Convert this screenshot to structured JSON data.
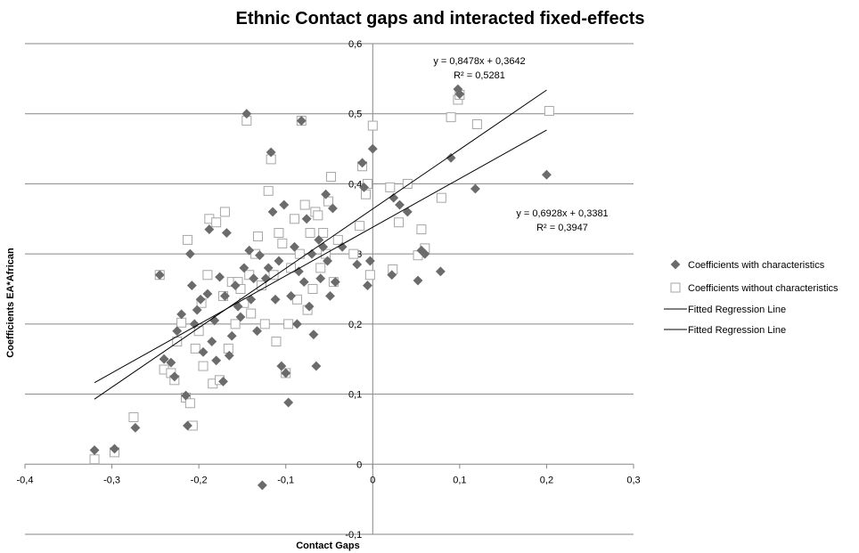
{
  "chart_data": {
    "type": "scatter",
    "title": "Ethnic Contact gaps and interacted fixed-effects",
    "xlabel": "Contact Gaps",
    "ylabel": "Coefficients EA*African",
    "xlim": [
      -0.4,
      0.3
    ],
    "ylim": [
      -0.1,
      0.6
    ],
    "x_ticks": [
      "-0,4",
      "-0,3",
      "-0,2",
      "-0,1",
      "0",
      "0,1",
      "0,2",
      "0,3"
    ],
    "y_ticks": [
      "-0,1",
      "0",
      "0,1",
      "0,2",
      "0,3",
      "0,4",
      "0,5",
      "0,6"
    ],
    "grid": "horizontal",
    "legend_position": "right",
    "colors": {
      "with": "#6b6b6b",
      "without": "#a6a6a6",
      "line": "#000000",
      "grid": "#868686"
    },
    "series": [
      {
        "name": "Coefficients with characteristics",
        "marker": "diamond",
        "points": [
          [
            -0.32,
            0.02
          ],
          [
            -0.297,
            0.022
          ],
          [
            -0.273,
            0.052
          ],
          [
            -0.245,
            0.27
          ],
          [
            -0.24,
            0.15
          ],
          [
            -0.232,
            0.145
          ],
          [
            -0.228,
            0.125
          ],
          [
            -0.225,
            0.19
          ],
          [
            -0.22,
            0.214
          ],
          [
            -0.215,
            0.098
          ],
          [
            -0.213,
            0.055
          ],
          [
            -0.21,
            0.3
          ],
          [
            -0.208,
            0.255
          ],
          [
            -0.205,
            0.2
          ],
          [
            -0.202,
            0.22
          ],
          [
            -0.198,
            0.235
          ],
          [
            -0.195,
            0.16
          ],
          [
            -0.19,
            0.243
          ],
          [
            -0.188,
            0.335
          ],
          [
            -0.185,
            0.175
          ],
          [
            -0.182,
            0.205
          ],
          [
            -0.18,
            0.148
          ],
          [
            -0.176,
            0.267
          ],
          [
            -0.172,
            0.118
          ],
          [
            -0.17,
            0.24
          ],
          [
            -0.168,
            0.33
          ],
          [
            -0.165,
            0.155
          ],
          [
            -0.162,
            0.183
          ],
          [
            -0.158,
            0.255
          ],
          [
            -0.155,
            0.225
          ],
          [
            -0.152,
            0.21
          ],
          [
            -0.148,
            0.28
          ],
          [
            -0.145,
            0.5
          ],
          [
            -0.142,
            0.305
          ],
          [
            -0.14,
            0.235
          ],
          [
            -0.137,
            0.265
          ],
          [
            -0.133,
            0.19
          ],
          [
            -0.13,
            0.298
          ],
          [
            -0.127,
            -0.03
          ],
          [
            -0.123,
            0.265
          ],
          [
            -0.12,
            0.28
          ],
          [
            -0.117,
            0.445
          ],
          [
            -0.115,
            0.36
          ],
          [
            -0.112,
            0.235
          ],
          [
            -0.108,
            0.29
          ],
          [
            -0.105,
            0.14
          ],
          [
            -0.102,
            0.37
          ],
          [
            -0.1,
            0.13
          ],
          [
            -0.097,
            0.088
          ],
          [
            -0.094,
            0.24
          ],
          [
            -0.09,
            0.31
          ],
          [
            -0.087,
            0.2
          ],
          [
            -0.085,
            0.275
          ],
          [
            -0.082,
            0.49
          ],
          [
            -0.079,
            0.26
          ],
          [
            -0.076,
            0.35
          ],
          [
            -0.073,
            0.225
          ],
          [
            -0.07,
            0.3
          ],
          [
            -0.068,
            0.185
          ],
          [
            -0.065,
            0.14
          ],
          [
            -0.062,
            0.32
          ],
          [
            -0.06,
            0.265
          ],
          [
            -0.057,
            0.31
          ],
          [
            -0.054,
            0.385
          ],
          [
            -0.052,
            0.29
          ],
          [
            -0.049,
            0.24
          ],
          [
            -0.046,
            0.365
          ],
          [
            -0.043,
            0.26
          ],
          [
            -0.035,
            0.31
          ],
          [
            -0.018,
            0.285
          ],
          [
            -0.012,
            0.43
          ],
          [
            -0.01,
            0.395
          ],
          [
            -0.006,
            0.255
          ],
          [
            -0.003,
            0.29
          ],
          [
            0.0,
            0.45
          ],
          [
            0.022,
            0.27
          ],
          [
            0.024,
            0.38
          ],
          [
            0.031,
            0.37
          ],
          [
            0.04,
            0.36
          ],
          [
            0.052,
            0.262
          ],
          [
            0.056,
            0.305
          ],
          [
            0.06,
            0.3
          ],
          [
            0.078,
            0.275
          ],
          [
            0.09,
            0.437
          ],
          [
            0.098,
            0.535
          ],
          [
            0.1,
            0.528
          ],
          [
            0.118,
            0.393
          ],
          [
            0.2,
            0.413
          ]
        ]
      },
      {
        "name": "Coefficients without characteristics",
        "marker": "square",
        "points": [
          [
            -0.32,
            0.007
          ],
          [
            -0.297,
            0.017
          ],
          [
            -0.275,
            0.067
          ],
          [
            -0.245,
            0.27
          ],
          [
            -0.24,
            0.135
          ],
          [
            -0.232,
            0.13
          ],
          [
            -0.228,
            0.12
          ],
          [
            -0.225,
            0.175
          ],
          [
            -0.22,
            0.202
          ],
          [
            -0.215,
            0.095
          ],
          [
            -0.213,
            0.32
          ],
          [
            -0.21,
            0.087
          ],
          [
            -0.207,
            0.055
          ],
          [
            -0.204,
            0.165
          ],
          [
            -0.2,
            0.19
          ],
          [
            -0.197,
            0.23
          ],
          [
            -0.195,
            0.14
          ],
          [
            -0.19,
            0.27
          ],
          [
            -0.188,
            0.35
          ],
          [
            -0.184,
            0.115
          ],
          [
            -0.18,
            0.345
          ],
          [
            -0.176,
            0.12
          ],
          [
            -0.172,
            0.24
          ],
          [
            -0.17,
            0.36
          ],
          [
            -0.166,
            0.165
          ],
          [
            -0.162,
            0.26
          ],
          [
            -0.158,
            0.2
          ],
          [
            -0.155,
            0.26
          ],
          [
            -0.152,
            0.25
          ],
          [
            -0.148,
            0.23
          ],
          [
            -0.145,
            0.49
          ],
          [
            -0.142,
            0.27
          ],
          [
            -0.14,
            0.215
          ],
          [
            -0.135,
            0.3
          ],
          [
            -0.132,
            0.325
          ],
          [
            -0.128,
            0.255
          ],
          [
            -0.124,
            0.2
          ],
          [
            -0.12,
            0.39
          ],
          [
            -0.117,
            0.435
          ],
          [
            -0.114,
            0.27
          ],
          [
            -0.111,
            0.175
          ],
          [
            -0.108,
            0.33
          ],
          [
            -0.104,
            0.315
          ],
          [
            -0.1,
            0.13
          ],
          [
            -0.097,
            0.2
          ],
          [
            -0.094,
            0.28
          ],
          [
            -0.09,
            0.35
          ],
          [
            -0.087,
            0.235
          ],
          [
            -0.084,
            0.3
          ],
          [
            -0.082,
            0.49
          ],
          [
            -0.078,
            0.37
          ],
          [
            -0.075,
            0.22
          ],
          [
            -0.072,
            0.33
          ],
          [
            -0.069,
            0.25
          ],
          [
            -0.066,
            0.36
          ],
          [
            -0.063,
            0.355
          ],
          [
            -0.06,
            0.28
          ],
          [
            -0.057,
            0.33
          ],
          [
            -0.054,
            0.3
          ],
          [
            -0.051,
            0.375
          ],
          [
            -0.048,
            0.41
          ],
          [
            -0.045,
            0.26
          ],
          [
            -0.04,
            0.32
          ],
          [
            -0.022,
            0.3
          ],
          [
            -0.015,
            0.34
          ],
          [
            -0.012,
            0.425
          ],
          [
            -0.008,
            0.385
          ],
          [
            -0.006,
            0.4
          ],
          [
            -0.003,
            0.27
          ],
          [
            0.0,
            0.483
          ],
          [
            0.02,
            0.395
          ],
          [
            0.023,
            0.278
          ],
          [
            0.03,
            0.345
          ],
          [
            0.04,
            0.4
          ],
          [
            0.052,
            0.298
          ],
          [
            0.056,
            0.335
          ],
          [
            0.06,
            0.308
          ],
          [
            0.079,
            0.38
          ],
          [
            0.09,
            0.495
          ],
          [
            0.098,
            0.52
          ],
          [
            0.1,
            0.527
          ],
          [
            0.12,
            0.485
          ],
          [
            0.203,
            0.504
          ]
        ]
      },
      {
        "name": "Fitted Regression Line",
        "type": "line",
        "slope": 0.8478,
        "intercept": 0.3642,
        "x_range": [
          -0.32,
          0.2
        ],
        "equation": "y = 0,8478x + 0,3642",
        "r2": "R² = 0,5281"
      },
      {
        "name": "Fitted Regression Line",
        "type": "line",
        "slope": 0.6928,
        "intercept": 0.3381,
        "x_range": [
          -0.32,
          0.2
        ],
        "equation": "y = 0,6928x + 0,3381",
        "r2": "R² = 0,3947"
      }
    ]
  }
}
